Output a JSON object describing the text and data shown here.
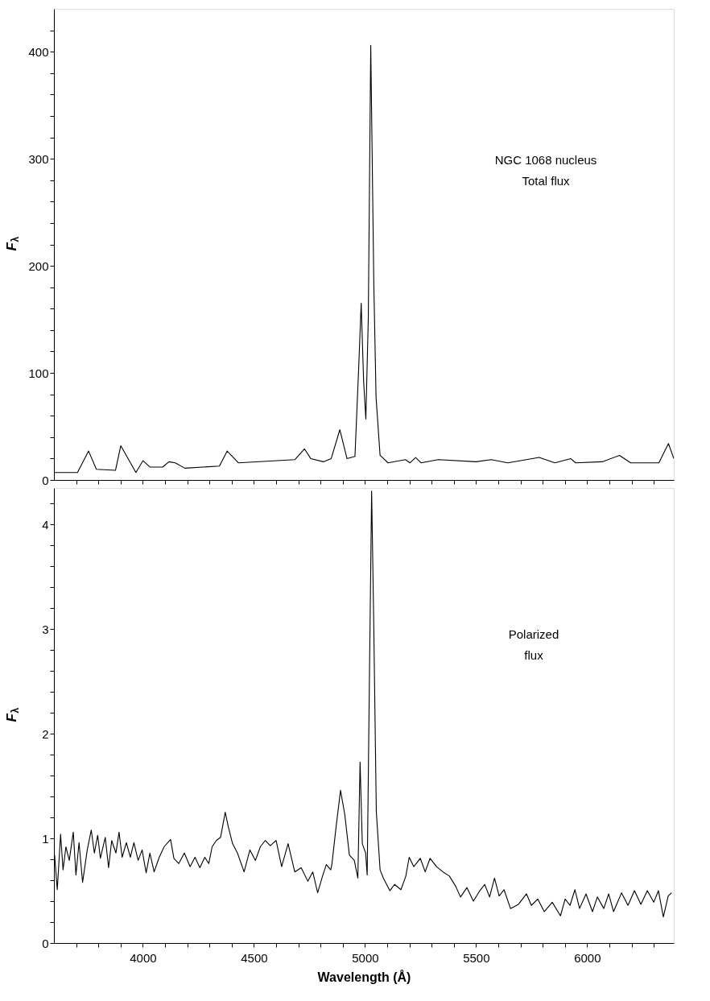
{
  "chart_data": [
    {
      "type": "line",
      "ylabel": "F$_{λ}$",
      "annotations": [
        "NGC 1068 nucleus",
        "Total flux"
      ],
      "tick_labels": "y",
      "grid": false,
      "xlim": [
        3600,
        6390
      ],
      "ylim": [
        0,
        440
      ],
      "xticks": [
        {
          "value": 3700,
          "label": null
        },
        {
          "value": 3800,
          "label": null
        },
        {
          "value": 3900,
          "label": null
        },
        {
          "value": 4000,
          "label": null
        },
        {
          "value": 4100,
          "label": null
        },
        {
          "value": 4200,
          "label": null
        },
        {
          "value": 4300,
          "label": null
        },
        {
          "value": 4400,
          "label": null
        },
        {
          "value": 4500,
          "label": null
        },
        {
          "value": 4600,
          "label": null
        },
        {
          "value": 4700,
          "label": null
        },
        {
          "value": 4800,
          "label": null
        },
        {
          "value": 4900,
          "label": null
        },
        {
          "value": 5000,
          "label": null
        },
        {
          "value": 5100,
          "label": null
        },
        {
          "value": 5200,
          "label": null
        },
        {
          "value": 5300,
          "label": null
        },
        {
          "value": 5400,
          "label": null
        },
        {
          "value": 5500,
          "label": null
        },
        {
          "value": 5600,
          "label": null
        },
        {
          "value": 5700,
          "label": null
        },
        {
          "value": 5800,
          "label": null
        },
        {
          "value": 5900,
          "label": null
        },
        {
          "value": 6000,
          "label": null
        },
        {
          "value": 6100,
          "label": null
        },
        {
          "value": 6200,
          "label": null
        },
        {
          "value": 6300,
          "label": null
        }
      ],
      "yticks": [
        0,
        {
          "value": 20,
          "label": null
        },
        {
          "value": 40,
          "label": null
        },
        {
          "value": 60,
          "label": null
        },
        {
          "value": 80,
          "label": null
        },
        100,
        {
          "value": 120,
          "label": null
        },
        {
          "value": 140,
          "label": null
        },
        {
          "value": 160,
          "label": null
        },
        {
          "value": 180,
          "label": null
        },
        200,
        {
          "value": 220,
          "label": null
        },
        {
          "value": 240,
          "label": null
        },
        {
          "value": 260,
          "label": null
        },
        {
          "value": 280,
          "label": null
        },
        300,
        {
          "value": 320,
          "label": null
        },
        {
          "value": 340,
          "label": null
        },
        {
          "value": 360,
          "label": null
        },
        {
          "value": 380,
          "label": null
        },
        400,
        {
          "value": 420,
          "label": null
        }
      ],
      "series": [
        {
          "color": "#000000",
          "x": [
            3600,
            3706,
            3756,
            3791,
            3877,
            3901,
            3969,
            4001,
            4033,
            4089,
            4118,
            4146,
            4189,
            4345,
            4380,
            4430,
            4685,
            4728,
            4756,
            4813,
            4848,
            4887,
            4919,
            4955,
            4972,
            4983,
            4994,
            5004,
            5015,
            5026,
            5040,
            5050,
            5068,
            5104,
            5182,
            5203,
            5228,
            5252,
            5330,
            5500,
            5568,
            5643,
            5784,
            5855,
            5926,
            5948,
            6068,
            6146,
            6196,
            6323,
            6366,
            6390
          ],
          "values": [
            7,
            7,
            27,
            10,
            9,
            32,
            7,
            18,
            12,
            12,
            17,
            16,
            11,
            13,
            27,
            16,
            19,
            29,
            20,
            17,
            20,
            47,
            20,
            22,
            106,
            165,
            92,
            57,
            151,
            406,
            181,
            77,
            23,
            16,
            19,
            16,
            21,
            16,
            19,
            17,
            19,
            16,
            21,
            16,
            20,
            16,
            17,
            23,
            16,
            16,
            34,
            20
          ]
        }
      ]
    },
    {
      "type": "line",
      "ylabel": "F$_{λ}$",
      "xlabel": "Wavelength (Å)",
      "annotations": [
        "Polarized",
        "flux"
      ],
      "grid": false,
      "xlim": [
        3600,
        6390
      ],
      "ylim": [
        0,
        4.35
      ],
      "xticks": [
        {
          "value": 3700,
          "label": null
        },
        {
          "value": 3800,
          "label": null
        },
        {
          "value": 3900,
          "label": null
        },
        4000,
        {
          "value": 4100,
          "label": null
        },
        {
          "value": 4200,
          "label": null
        },
        {
          "value": 4300,
          "label": null
        },
        {
          "value": 4400,
          "label": null
        },
        4500,
        {
          "value": 4600,
          "label": null
        },
        {
          "value": 4700,
          "label": null
        },
        {
          "value": 4800,
          "label": null
        },
        {
          "value": 4900,
          "label": null
        },
        5000,
        {
          "value": 5100,
          "label": null
        },
        {
          "value": 5200,
          "label": null
        },
        {
          "value": 5300,
          "label": null
        },
        {
          "value": 5400,
          "label": null
        },
        5500,
        {
          "value": 5600,
          "label": null
        },
        {
          "value": 5700,
          "label": null
        },
        {
          "value": 5800,
          "label": null
        },
        {
          "value": 5900,
          "label": null
        },
        6000,
        {
          "value": 6100,
          "label": null
        },
        {
          "value": 6200,
          "label": null
        },
        {
          "value": 6300,
          "label": null
        }
      ],
      "yticks": [
        0,
        {
          "value": 0.2,
          "label": null
        },
        {
          "value": 0.4,
          "label": null
        },
        {
          "value": 0.6,
          "label": null
        },
        {
          "value": 0.8,
          "label": null
        },
        1,
        {
          "value": 1.2,
          "label": null
        },
        {
          "value": 1.4,
          "label": null
        },
        {
          "value": 1.6,
          "label": null
        },
        {
          "value": 1.8,
          "label": null
        },
        2,
        {
          "value": 2.2,
          "label": null
        },
        {
          "value": 2.4,
          "label": null
        },
        {
          "value": 2.6,
          "label": null
        },
        {
          "value": 2.8,
          "label": null
        },
        3,
        {
          "value": 3.2,
          "label": null
        },
        {
          "value": 3.4,
          "label": null
        },
        {
          "value": 3.6,
          "label": null
        },
        {
          "value": 3.8,
          "label": null
        },
        4,
        {
          "value": 4.2,
          "label": null
        }
      ],
      "series": [
        {
          "color": "#000000",
          "x": [
            3600,
            3603,
            3615,
            3630,
            3641,
            3654,
            3669,
            3687,
            3699,
            3713,
            3729,
            3750,
            3768,
            3782,
            3797,
            3809,
            3831,
            3846,
            3860,
            3879,
            3893,
            3907,
            3926,
            3944,
            3960,
            3979,
            3997,
            4015,
            4032,
            4051,
            4074,
            4096,
            4125,
            4140,
            4162,
            4187,
            4213,
            4235,
            4257,
            4279,
            4297,
            4312,
            4331,
            4350,
            4371,
            4385,
            4404,
            4426,
            4456,
            4482,
            4507,
            4529,
            4551,
            4574,
            4600,
            4625,
            4654,
            4684,
            4713,
            4743,
            4765,
            4787,
            4809,
            4826,
            4846,
            4851,
            4870,
            4890,
            4909,
            4930,
            4952,
            4968,
            4978,
            4988,
            5003,
            5010,
            5020,
            5030,
            5039,
            5051,
            5068,
            5083,
            5112,
            5133,
            5162,
            5184,
            5199,
            5220,
            5249,
            5271,
            5293,
            5322,
            5351,
            5380,
            5409,
            5430,
            5459,
            5488,
            5517,
            5539,
            5561,
            5583,
            5604,
            5626,
            5655,
            5691,
            5727,
            5749,
            5778,
            5807,
            5843,
            5880,
            5901,
            5923,
            5945,
            5966,
            5995,
            6024,
            6046,
            6075,
            6097,
            6119,
            6155,
            6184,
            6213,
            6242,
            6271,
            6300,
            6321,
            6343,
            6365,
            6380
          ],
          "values": [
            0.76,
            0.84,
            0.51,
            1.04,
            0.7,
            0.92,
            0.79,
            1.06,
            0.65,
            0.96,
            0.58,
            0.89,
            1.08,
            0.86,
            1.03,
            0.81,
            1.01,
            0.72,
            0.98,
            0.86,
            1.06,
            0.82,
            0.96,
            0.82,
            0.96,
            0.79,
            0.89,
            0.67,
            0.86,
            0.68,
            0.82,
            0.92,
            0.99,
            0.81,
            0.76,
            0.86,
            0.73,
            0.82,
            0.72,
            0.82,
            0.76,
            0.92,
            0.98,
            1.01,
            1.25,
            1.11,
            0.95,
            0.86,
            0.68,
            0.89,
            0.79,
            0.92,
            0.98,
            0.93,
            0.98,
            0.73,
            0.95,
            0.68,
            0.72,
            0.59,
            0.68,
            0.48,
            0.64,
            0.75,
            0.7,
            0.75,
            1.11,
            1.46,
            1.23,
            0.84,
            0.79,
            0.62,
            1.73,
            0.95,
            0.86,
            0.65,
            2.51,
            4.32,
            3.13,
            1.26,
            0.7,
            0.62,
            0.5,
            0.56,
            0.51,
            0.64,
            0.82,
            0.73,
            0.81,
            0.68,
            0.81,
            0.73,
            0.68,
            0.64,
            0.54,
            0.44,
            0.53,
            0.4,
            0.5,
            0.56,
            0.44,
            0.62,
            0.45,
            0.51,
            0.33,
            0.37,
            0.47,
            0.36,
            0.42,
            0.3,
            0.39,
            0.26,
            0.42,
            0.36,
            0.51,
            0.33,
            0.47,
            0.3,
            0.44,
            0.33,
            0.47,
            0.3,
            0.48,
            0.36,
            0.5,
            0.37,
            0.5,
            0.39,
            0.5,
            0.25,
            0.45,
            0.48
          ]
        }
      ]
    }
  ]
}
